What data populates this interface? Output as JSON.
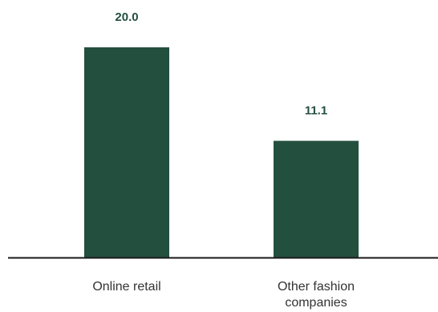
{
  "colors": {
    "bar": "#234f3e",
    "axis": "#1a1a1a",
    "value_text": "#234f3e",
    "category_text": "#333333"
  },
  "chart_data": {
    "type": "bar",
    "categories": [
      [
        "Online retail"
      ],
      [
        "Other fashion",
        "companies"
      ]
    ],
    "values": [
      20.0,
      11.1
    ],
    "value_labels": [
      "20.0",
      "11.1"
    ],
    "title": "",
    "xlabel": "",
    "ylabel": "",
    "ylim": [
      0,
      20.0
    ],
    "grid": false,
    "legend": "none"
  }
}
